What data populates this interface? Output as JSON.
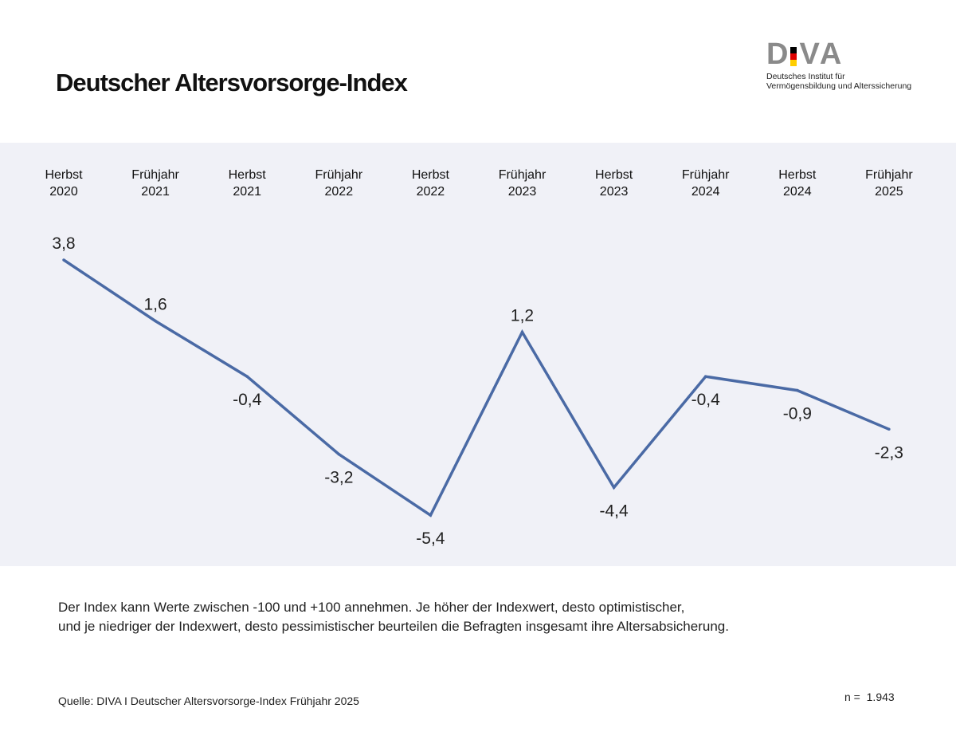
{
  "title": "Deutscher Altersvorsorge-Index",
  "logo": {
    "letters": [
      "D",
      "I",
      "V",
      "A"
    ],
    "line1": "Deutsches Institut für",
    "line2": "Vermögensbildung und Alterssicherung",
    "flag_colors": [
      "#000000",
      "#dd0000",
      "#ffce00"
    ]
  },
  "chart_data": {
    "type": "line",
    "categories": [
      [
        "Herbst",
        "2020"
      ],
      [
        "Frühjahr",
        "2021"
      ],
      [
        "Herbst",
        "2021"
      ],
      [
        "Frühjahr",
        "2022"
      ],
      [
        "Herbst",
        "2022"
      ],
      [
        "Frühjahr",
        "2023"
      ],
      [
        "Herbst",
        "2023"
      ],
      [
        "Frühjahr",
        "2024"
      ],
      [
        "Herbst",
        "2024"
      ],
      [
        "Frühjahr",
        "2025"
      ]
    ],
    "values": [
      3.8,
      1.6,
      -0.4,
      -3.2,
      -5.4,
      1.2,
      -4.4,
      -0.4,
      -0.9,
      -2.3
    ],
    "value_labels": [
      "3,8",
      "1,6",
      "-0,4",
      "-3,2",
      "-5,4",
      "1,2",
      "-4,4",
      "-0,4",
      "-0,9",
      "-2,3"
    ],
    "label_position": [
      "above",
      "above",
      "below",
      "below",
      "below",
      "above",
      "below",
      "below",
      "below",
      "below"
    ],
    "line_color": "#4a6aa5",
    "background": "#f0f1f7",
    "grid": false,
    "legend": false
  },
  "note": {
    "line1": "Der Index kann Werte zwischen -100 und +100 annehmen. Je höher der Indexwert, desto optimistischer,",
    "line2": "und je niedriger der Indexwert, desto pessimistischer beurteilen die Befragten insgesamt ihre Altersabsicherung."
  },
  "source": "Quelle: DIVA I Deutscher Altersvorsorge-Index Frühjahr 2025",
  "n_label": "n =",
  "n_value": "1.943"
}
